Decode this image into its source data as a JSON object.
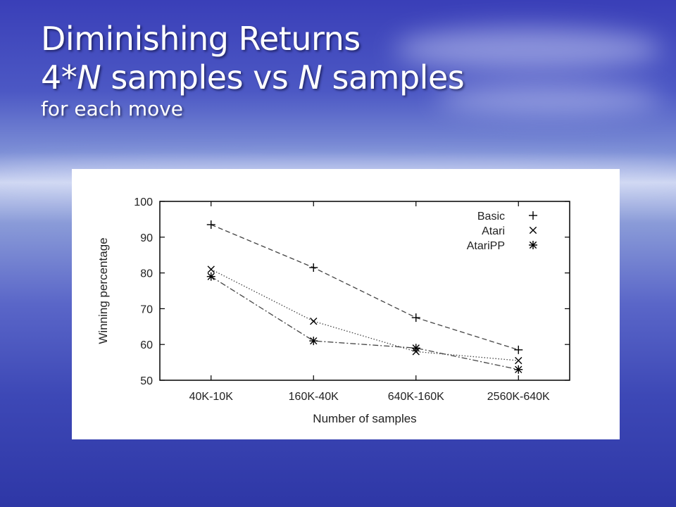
{
  "slide": {
    "title_line1": "Diminishing Returns",
    "title_line2_parts": [
      "4*",
      "N",
      " samples vs ",
      "N",
      " samples"
    ],
    "subtitle": "for each move"
  },
  "chart_data": {
    "type": "line",
    "title": "",
    "xlabel": "Number of samples",
    "ylabel": "Winning percentage",
    "categories": [
      "40K-10K",
      "160K-40K",
      "640K-160K",
      "2560K-640K"
    ],
    "ylim": [
      50,
      100
    ],
    "yticks": [
      50,
      60,
      70,
      80,
      90,
      100
    ],
    "legend_position": "top-right",
    "grid": false,
    "series": [
      {
        "name": "Basic",
        "marker": "plus",
        "dash": "dashed",
        "values": [
          93.5,
          81.5,
          67.5,
          58.5
        ]
      },
      {
        "name": "Atari",
        "marker": "x",
        "dash": "dotted",
        "values": [
          81,
          66.5,
          58,
          55.5
        ]
      },
      {
        "name": "AtariPP",
        "marker": "star",
        "dash": "dashdot",
        "values": [
          79,
          61,
          59,
          53
        ]
      }
    ]
  }
}
